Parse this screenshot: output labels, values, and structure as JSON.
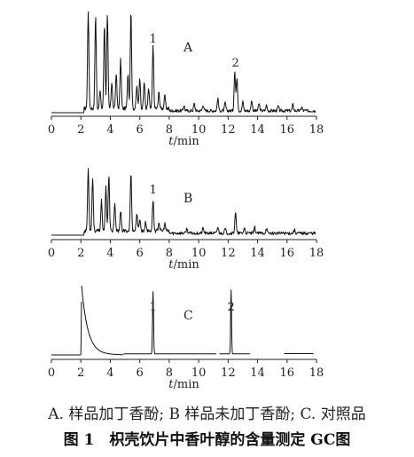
{
  "chart_data": [
    {
      "type": "line",
      "label": "A",
      "xlabel": "t/min",
      "xlim": [
        0,
        18
      ],
      "xticks": [
        0,
        2,
        4,
        6,
        8,
        10,
        12,
        14,
        16,
        18
      ],
      "peaks": [
        {
          "label": "1",
          "x": 6.9
        },
        {
          "label": "2",
          "x": 12.5
        }
      ]
    },
    {
      "type": "line",
      "label": "B",
      "xlabel": "t/min",
      "xlim": [
        0,
        18
      ],
      "xticks": [
        0,
        2,
        4,
        6,
        8,
        10,
        12,
        14,
        16,
        18
      ],
      "peaks": [
        {
          "label": "1",
          "x": 6.9
        }
      ]
    },
    {
      "type": "line",
      "label": "C",
      "xlabel": "t/min",
      "xlim": [
        0,
        18
      ],
      "xticks": [
        0,
        2,
        4,
        6,
        8,
        10,
        12,
        14,
        16,
        18
      ],
      "peaks": [
        {
          "label": "1",
          "x": 6.9
        },
        {
          "label": "2",
          "x": 12.2
        }
      ]
    }
  ],
  "caption": {
    "subtitle": "A. 样品加丁香酚; B 样品未加丁香酚; C. 对照品",
    "title": "图 1　枳壳饮片中香叶醇的含量测定 GC图"
  }
}
